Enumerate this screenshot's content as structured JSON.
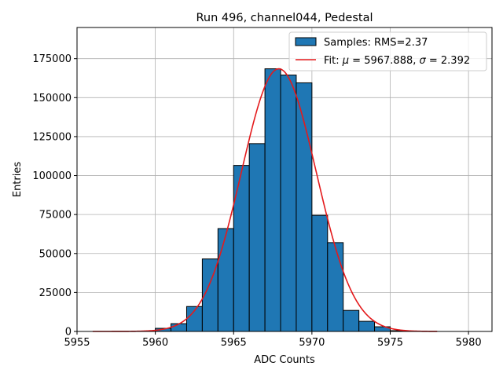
{
  "chart_data": {
    "type": "bar",
    "title": "Run 496, channel044, Pedestal",
    "xlabel": "ADC Counts",
    "ylabel": "Entries",
    "xlim": [
      5955,
      5981.5
    ],
    "ylim": [
      0,
      195000
    ],
    "xticks": [
      5955,
      5960,
      5965,
      5970,
      5975,
      5980
    ],
    "yticks": [
      0,
      25000,
      50000,
      75000,
      100000,
      125000,
      150000,
      175000
    ],
    "grid": true,
    "legend_position": "top-right",
    "bar_color": "#1f77b4",
    "fit_color": "#e41a1c",
    "bins": [
      {
        "left": 5960,
        "value": 2000
      },
      {
        "left": 5961,
        "value": 5000
      },
      {
        "left": 5962,
        "value": 16000
      },
      {
        "left": 5963,
        "value": 46500
      },
      {
        "left": 5964,
        "value": 66000
      },
      {
        "left": 5965,
        "value": 106500
      },
      {
        "left": 5966,
        "value": 120500
      },
      {
        "left": 5967,
        "value": 168500
      },
      {
        "left": 5968,
        "value": 164500
      },
      {
        "left": 5969,
        "value": 159500
      },
      {
        "left": 5970,
        "value": 74500
      },
      {
        "left": 5971,
        "value": 57000
      },
      {
        "left": 5972,
        "value": 13500
      },
      {
        "left": 5973,
        "value": 6500
      },
      {
        "left": 5974,
        "value": 3000
      },
      {
        "left": 5975,
        "value": 500
      }
    ],
    "fit": {
      "mu": 5967.888,
      "sigma": 2.392,
      "amplitude": 168500,
      "x_range": [
        5956,
        5978
      ]
    },
    "legend": {
      "samples_label": "Samples: RMS=2.37",
      "fit_prefix": "Fit: ",
      "mu_symbol": "μ",
      "mu_text": " = 5967.888, ",
      "sigma_symbol": "σ",
      "sigma_text": " = 2.392"
    }
  }
}
